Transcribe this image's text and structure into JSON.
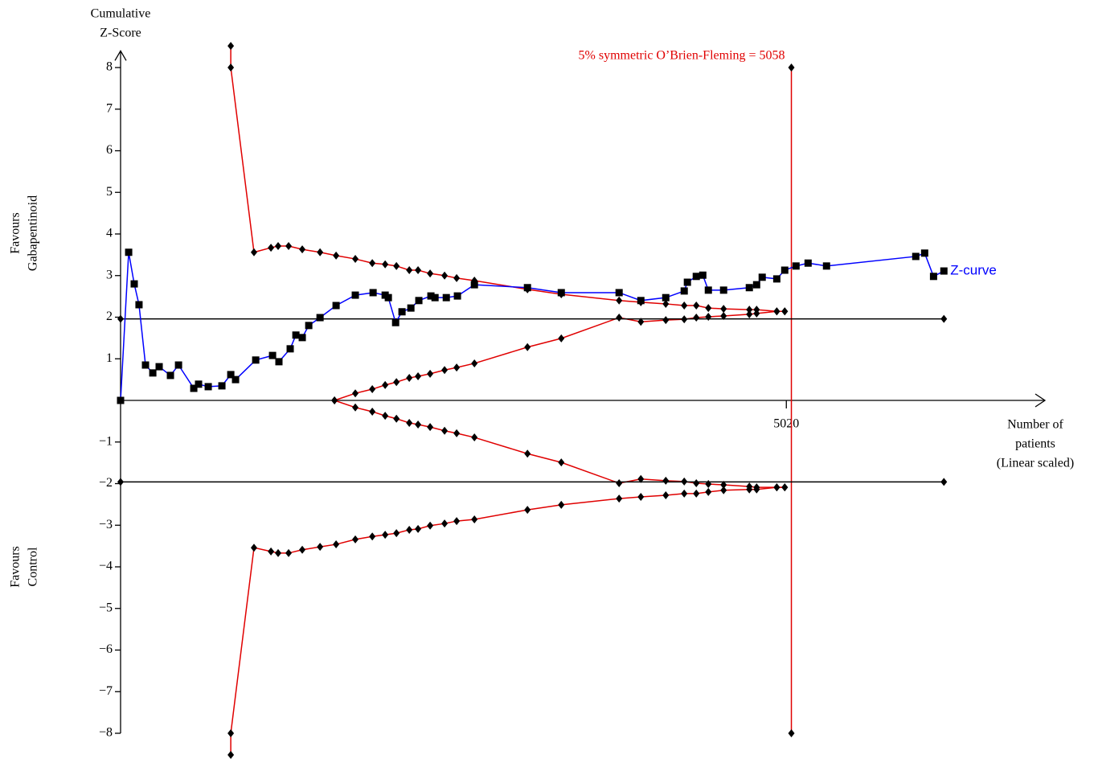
{
  "chart_data": {
    "type": "line",
    "y_label": [
      "Cumulative",
      "Z-Score"
    ],
    "x_label": [
      "Number of",
      "patients",
      "(Linear scaled)"
    ],
    "upper_side_label": [
      "Favours",
      "Gabapentinoid"
    ],
    "lower_side_label": [
      "Favours",
      "Control"
    ],
    "ris_label": "5% symmetric O’Brien-Fleming = 5058",
    "ris_line": {
      "color": "#e00000",
      "x": [
        5058,
        5058
      ],
      "values": [
        8,
        -8
      ]
    },
    "xlim": [
      0,
      6970
    ],
    "ylim": [
      -8,
      8.4
    ],
    "xticks": [
      5020
    ],
    "yticks": [
      {
        "value": -8,
        "label": "−8"
      },
      {
        "value": -7,
        "label": "−7"
      },
      {
        "value": -6,
        "label": "−6"
      },
      {
        "value": -5,
        "label": "−5"
      },
      {
        "value": -4,
        "label": "−4"
      },
      {
        "value": -3,
        "label": "−3"
      },
      {
        "value": -2,
        "label": "−2"
      },
      {
        "value": -1,
        "label": "−1"
      },
      1,
      2,
      3,
      4,
      5,
      6,
      7,
      8
    ],
    "series": [
      {
        "name": "Z-curve",
        "color": "#0000ff",
        "marker": "square",
        "x": [
          0,
          61,
          103,
          139,
          188,
          243,
          291,
          376,
          437,
          552,
          588,
          661,
          764,
          831,
          867,
          1019,
          1146,
          1194,
          1279,
          1322,
          1370,
          1419,
          1504,
          1625,
          1770,
          1904,
          1995,
          2019,
          2074,
          2122,
          2189,
          2249,
          2340,
          2371,
          2456,
          2540,
          2668,
          3068,
          3323,
          3759,
          3923,
          4111,
          4250,
          4274,
          4341,
          4390,
          4432,
          4547,
          4741,
          4796,
          4838,
          4948,
          5008,
          5093,
          5184,
          5323,
          5996,
          6063,
          6130,
          6208
        ],
        "values": [
          0,
          3.56,
          2.8,
          2.3,
          0.85,
          0.66,
          0.81,
          0.6,
          0.85,
          0.29,
          0.39,
          0.33,
          0.35,
          0.62,
          0.5,
          0.97,
          1.08,
          0.93,
          1.24,
          1.57,
          1.51,
          1.8,
          1.99,
          2.28,
          2.53,
          2.59,
          2.53,
          2.47,
          1.87,
          2.13,
          2.22,
          2.4,
          2.51,
          2.47,
          2.47,
          2.51,
          2.78,
          2.71,
          2.59,
          2.59,
          2.4,
          2.47,
          2.63,
          2.84,
          2.98,
          3.01,
          2.65,
          2.65,
          2.71,
          2.78,
          2.96,
          2.92,
          3.13,
          3.23,
          3.3,
          3.23,
          3.46,
          3.54,
          2.98,
          3.11
        ]
      },
      {
        "color": "#e00000",
        "marker": "diamond",
        "x": [
          831,
          831,
          1006,
          1134,
          1188,
          1267,
          1370,
          1504,
          1625,
          1770,
          1898,
          1995,
          2080,
          2177,
          2243,
          2334,
          2443,
          2534,
          2668,
          3068,
          3323,
          3759,
          3923,
          4111,
          4250,
          4341,
          4432,
          4547,
          4741,
          4796,
          4948,
          5008
        ],
        "values": [
          8.52,
          8,
          3.56,
          3.67,
          3.71,
          3.71,
          3.63,
          3.56,
          3.48,
          3.4,
          3.3,
          3.27,
          3.23,
          3.13,
          3.13,
          3.05,
          3,
          2.94,
          2.88,
          2.67,
          2.55,
          2.4,
          2.36,
          2.32,
          2.28,
          2.28,
          2.22,
          2.2,
          2.18,
          2.18,
          2.14,
          2.14
        ]
      },
      {
        "color": "#e00000",
        "marker": "diamond",
        "x": [
          831,
          831,
          1006,
          1134,
          1188,
          1267,
          1370,
          1504,
          1625,
          1770,
          1898,
          1995,
          2080,
          2177,
          2243,
          2334,
          2443,
          2534,
          2668,
          3068,
          3323,
          3759,
          3923,
          4111,
          4250,
          4341,
          4432,
          4547,
          4741,
          4796,
          4948,
          5008
        ],
        "values": [
          -8.52,
          -8,
          -3.54,
          -3.63,
          -3.67,
          -3.67,
          -3.59,
          -3.52,
          -3.46,
          -3.34,
          -3.27,
          -3.23,
          -3.19,
          -3.11,
          -3.09,
          -3.01,
          -2.96,
          -2.9,
          -2.86,
          -2.63,
          -2.51,
          -2.36,
          -2.32,
          -2.28,
          -2.24,
          -2.24,
          -2.2,
          -2.16,
          -2.14,
          -2.14,
          -2.09,
          -2.09
        ]
      },
      {
        "color": "#e00000",
        "marker": "diamond",
        "x": [
          1613,
          1770,
          1898,
          1995,
          2080,
          2177,
          2243,
          2334,
          2443,
          2534,
          2668,
          3068,
          3323,
          3759,
          3923,
          4111,
          4250,
          4341,
          4432,
          4547,
          4741,
          4796,
          4948,
          5008
        ],
        "values": [
          0,
          0.17,
          0.27,
          0.37,
          0.44,
          0.54,
          0.58,
          0.64,
          0.73,
          0.79,
          0.89,
          1.28,
          1.49,
          1.99,
          1.89,
          1.93,
          1.95,
          1.99,
          2.01,
          2.03,
          2.07,
          2.09,
          2.14,
          2.14
        ]
      },
      {
        "color": "#e00000",
        "marker": "diamond",
        "x": [
          1613,
          1770,
          1898,
          1995,
          2080,
          2177,
          2243,
          2334,
          2443,
          2534,
          2668,
          3068,
          3323,
          3759,
          3923,
          4111,
          4250,
          4341,
          4432,
          4547,
          4741,
          4796,
          4948,
          5008
        ],
        "values": [
          0,
          -0.17,
          -0.27,
          -0.37,
          -0.44,
          -0.54,
          -0.58,
          -0.64,
          -0.73,
          -0.79,
          -0.89,
          -1.28,
          -1.49,
          -1.99,
          -1.89,
          -1.93,
          -1.95,
          -1.99,
          -2.01,
          -2.03,
          -2.07,
          -2.09,
          -2.09,
          -2.09
        ]
      },
      {
        "color": "#000000",
        "marker": "diamond",
        "x": [
          0,
          6208
        ],
        "values": [
          1.96,
          1.96
        ]
      },
      {
        "color": "#000000",
        "marker": "diamond",
        "x": [
          0,
          6208
        ],
        "values": [
          -1.96,
          -1.96
        ]
      }
    ]
  }
}
